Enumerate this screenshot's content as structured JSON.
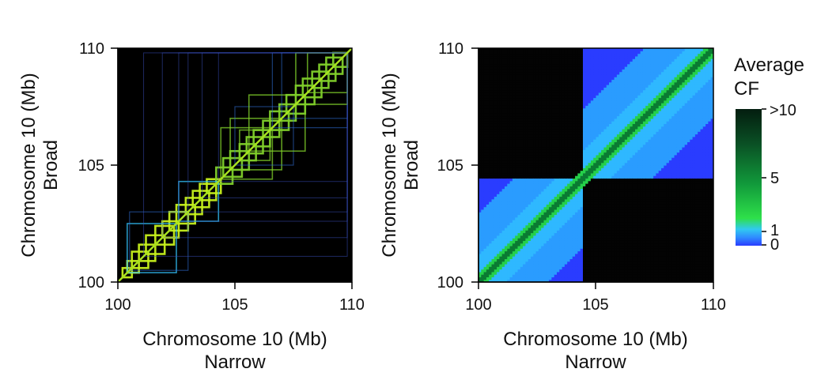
{
  "chart_data": [
    {
      "type": "heatmap",
      "subtype": "nested-domain-outlines",
      "xlabel": "Chromosome 10 (Mb)",
      "xlabel2": "Narrow",
      "ylabel": "Chromosome 10 (Mb)",
      "ylabel2": "Broad",
      "xlim": [
        100,
        110
      ],
      "ylim": [
        100,
        110
      ],
      "xticks": [
        "100",
        "105",
        "110"
      ],
      "yticks": [
        "100",
        "105",
        "110"
      ],
      "background": "#000000",
      "grid": false,
      "nested_domains_mb": [
        [
          100.2,
          100.6
        ],
        [
          100.4,
          100.9
        ],
        [
          100.6,
          101.3
        ],
        [
          100.9,
          101.6
        ],
        [
          101.2,
          102.0
        ],
        [
          101.6,
          102.4
        ],
        [
          101.9,
          102.6
        ],
        [
          102.2,
          103.0
        ],
        [
          102.5,
          103.3
        ],
        [
          102.9,
          103.6
        ],
        [
          103.2,
          103.9
        ],
        [
          103.5,
          104.2
        ],
        [
          103.8,
          104.4
        ],
        [
          104.2,
          104.9
        ],
        [
          104.5,
          105.3
        ],
        [
          104.8,
          105.6
        ],
        [
          105.2,
          105.9
        ],
        [
          105.5,
          106.2
        ],
        [
          105.8,
          106.5
        ],
        [
          106.2,
          106.9
        ],
        [
          106.5,
          107.3
        ],
        [
          106.9,
          107.6
        ],
        [
          107.2,
          108.0
        ],
        [
          107.6,
          108.4
        ],
        [
          107.9,
          108.7
        ],
        [
          108.3,
          109.0
        ],
        [
          108.6,
          109.3
        ],
        [
          108.9,
          109.6
        ],
        [
          109.2,
          109.8
        ],
        [
          100.4,
          102.5
        ],
        [
          100.5,
          103.0
        ],
        [
          102.6,
          104.3
        ],
        [
          104.3,
          109.8
        ],
        [
          104.4,
          106.6
        ],
        [
          104.8,
          107.0
        ],
        [
          105.2,
          106.5
        ],
        [
          106.6,
          109.8
        ],
        [
          107.0,
          109.8
        ],
        [
          107.6,
          109.8
        ],
        [
          108.1,
          109.8
        ],
        [
          102.6,
          109.8
        ],
        [
          101.9,
          109.8
        ],
        [
          101.1,
          109.8
        ],
        [
          103.0,
          109.8
        ],
        [
          103.6,
          109.8
        ],
        [
          105.0,
          107.5
        ],
        [
          105.6,
          108.0
        ]
      ]
    },
    {
      "type": "heatmap",
      "subtype": "contact-frequency-matrix",
      "xlabel": "Chromosome 10 (Mb)",
      "xlabel2": "Narrow",
      "ylabel": "Chromosome 10 (Mb)",
      "ylabel2": "Broad",
      "xlim": [
        100,
        110
      ],
      "ylim": [
        100,
        110
      ],
      "xticks": [
        "100",
        "105",
        "110"
      ],
      "yticks": [
        "100",
        "105",
        "110"
      ],
      "grid": false,
      "domain_boundary_mb": 104.4,
      "colorbar": {
        "title_line1": "Average",
        "title_line2": "CF",
        "ticks": [
          ">10",
          "5",
          "1",
          "0"
        ],
        "colors": [
          "#2a3cff",
          "#2fb8ff",
          "#25d04a",
          "#0f8a3a",
          "#08431f",
          "#031d0f"
        ]
      }
    }
  ]
}
